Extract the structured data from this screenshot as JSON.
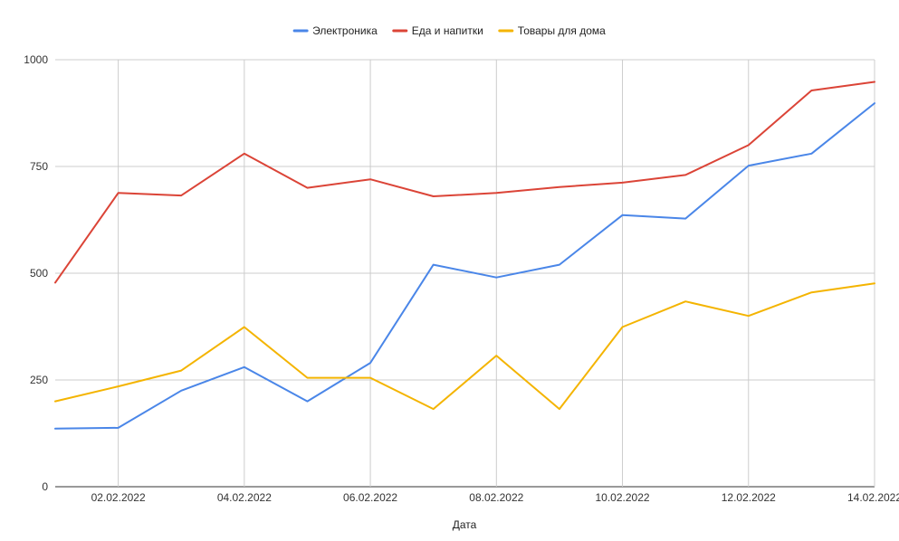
{
  "chart_data": {
    "type": "line",
    "xlabel": "Дата",
    "ylabel": "",
    "ylim": [
      0,
      1000
    ],
    "y_ticks": [
      0,
      250,
      500,
      750,
      1000
    ],
    "x": [
      "01.02.2022",
      "02.02.2022",
      "03.02.2022",
      "04.02.2022",
      "05.02.2022",
      "06.02.2022",
      "07.02.2022",
      "08.02.2022",
      "09.02.2022",
      "10.02.2022",
      "11.02.2022",
      "12.02.2022",
      "13.02.2022",
      "14.02.2022"
    ],
    "x_tick_labels": [
      "02.02.2022",
      "04.02.2022",
      "06.02.2022",
      "08.02.2022",
      "10.02.2022",
      "12.02.2022",
      "14.02.2022"
    ],
    "grid": true,
    "legend_position": "top",
    "series": [
      {
        "name": "Электроника",
        "color": "#4a86e8",
        "values": [
          136,
          138,
          225,
          280,
          200,
          290,
          520,
          490,
          520,
          636,
          628,
          752,
          780,
          898
        ]
      },
      {
        "name": "Еда и напитки",
        "color": "#db4437",
        "values": [
          478,
          688,
          682,
          780,
          700,
          720,
          680,
          688,
          702,
          712,
          730,
          800,
          928,
          948
        ]
      },
      {
        "name": "Товары для дома",
        "color": "#f4b400",
        "values": [
          200,
          235,
          272,
          374,
          255,
          255,
          182,
          307,
          182,
          374,
          434,
          400,
          455,
          476
        ]
      }
    ]
  }
}
